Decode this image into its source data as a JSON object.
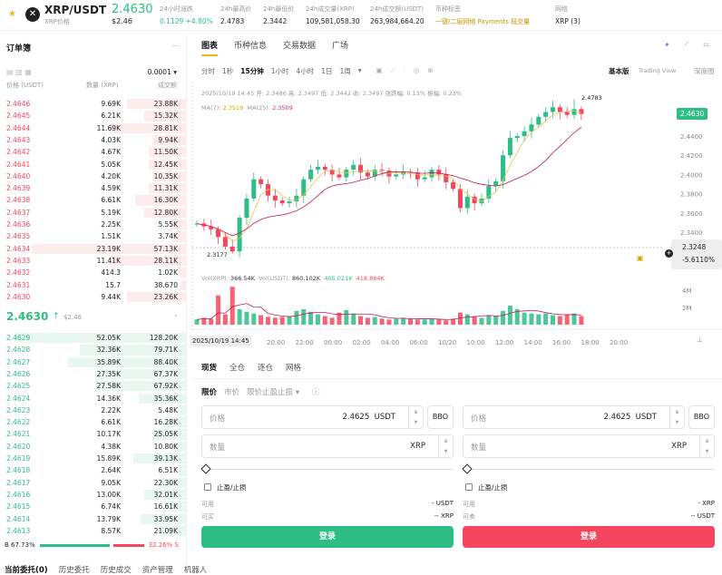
{
  "header": {
    "symbol": "XRP/USDT",
    "price": "2.4630",
    "sub_label": "XRP价格",
    "usd": "$2.46",
    "stats": [
      {
        "label": "24小时涨跌",
        "value": "0.1129 +4.80%"
      },
      {
        "label": "24h最高价",
        "value": "2.4783"
      },
      {
        "label": "24h最低价",
        "value": "2.3442"
      },
      {
        "label": "24h成交量(XRP)",
        "value": "109,581,058.30"
      },
      {
        "label": "24h成交额(USDT)",
        "value": "263,984,664.20"
      }
    ],
    "tags_label": "币种标签",
    "tags": "一键/二层网络  Payments  既交量",
    "network_label": "网络",
    "network": "XRP (3)"
  },
  "orderbook": {
    "title": "订单簿",
    "more": "...",
    "precision": "0.0001",
    "cols": [
      "价格 (USDT)",
      "数量 (XRP)",
      "成交额"
    ],
    "asks": [
      [
        "2.4646",
        "9.69K",
        "23.88K"
      ],
      [
        "2.4645",
        "6.21K",
        "15.32K"
      ],
      [
        "2.4644",
        "11.69K",
        "28.81K"
      ],
      [
        "2.4643",
        "4.03K",
        "9.94K"
      ],
      [
        "2.4642",
        "4.67K",
        "11.50K"
      ],
      [
        "2.4641",
        "5.05K",
        "12.45K"
      ],
      [
        "2.4640",
        "4.20K",
        "10.35K"
      ],
      [
        "2.4639",
        "4.59K",
        "11.31K"
      ],
      [
        "2.4638",
        "6.61K",
        "16.30K"
      ],
      [
        "2.4637",
        "5.19K",
        "12.80K"
      ],
      [
        "2.4636",
        "2.25K",
        "5.55K"
      ],
      [
        "2.4635",
        "1.51K",
        "3.74K"
      ],
      [
        "2.4634",
        "23.19K",
        "57.13K"
      ],
      [
        "2.4633",
        "11.41K",
        "28.11K"
      ],
      [
        "2.4632",
        "414.3",
        "1.02K"
      ],
      [
        "2.4631",
        "15.7",
        "38.670"
      ],
      [
        "2.4630",
        "9.44K",
        "23.26K"
      ]
    ],
    "ask_depth": [
      0.35,
      0.25,
      0.45,
      0.2,
      0.22,
      0.22,
      0.2,
      0.22,
      0.3,
      0.25,
      0.1,
      0.08,
      0.9,
      0.45,
      0.05,
      0.03,
      0.35
    ],
    "last": "2.4630",
    "last_arrow": "↑",
    "last_usd": "$2.46",
    "chev": "›",
    "bids": [
      [
        "2.4629",
        "52.05K",
        "128.20K"
      ],
      [
        "2.4628",
        "32.36K",
        "79.71K"
      ],
      [
        "2.4627",
        "35.89K",
        "88.40K"
      ],
      [
        "2.4626",
        "27.35K",
        "67.37K"
      ],
      [
        "2.4625",
        "27.58K",
        "67.92K"
      ],
      [
        "2.4624",
        "14.36K",
        "35.36K"
      ],
      [
        "2.4623",
        "2.22K",
        "5.48K"
      ],
      [
        "2.4622",
        "6.61K",
        "16.28K"
      ],
      [
        "2.4621",
        "10.17K",
        "25.05K"
      ],
      [
        "2.4620",
        "4.38K",
        "10.80K"
      ],
      [
        "2.4619",
        "15.89K",
        "39.13K"
      ],
      [
        "2.4618",
        "2.64K",
        "6.51K"
      ],
      [
        "2.4617",
        "9.05K",
        "22.30K"
      ],
      [
        "2.4616",
        "13.00K",
        "32.01K"
      ],
      [
        "2.4615",
        "6.74K",
        "16.61K"
      ],
      [
        "2.4614",
        "13.79K",
        "33.95K"
      ],
      [
        "2.4613",
        "8.57K",
        "21.09K"
      ]
    ],
    "bid_depth": [
      1,
      0.62,
      0.69,
      0.53,
      0.53,
      0.28,
      0.04,
      0.13,
      0.2,
      0.08,
      0.31,
      0.05,
      0.17,
      0.25,
      0.13,
      0.27,
      0.16
    ],
    "buy_ratio": "B 67.73%",
    "sell_ratio": "32.26% S",
    "buy_pct": 67.73
  },
  "chart_tabs": [
    "图表",
    "币种信息",
    "交易数据",
    "广场"
  ],
  "intervals": [
    "分时",
    "1秒",
    "15分钟",
    "1小时",
    "4小时",
    "1日",
    "1周",
    "▾"
  ],
  "views": [
    "基本版",
    "Trading View",
    "深度图"
  ],
  "chart_data": {
    "type": "candlestick",
    "info": "2025/10/19 14:45  开: 2.3486  高: 2.3497  低: 2.3442  收: 2.3497  涨跌幅: 0.13%  振幅: 0.23%",
    "ma_label": "MA(7): ",
    "ma7": "2.3519",
    "ma25_label": "MA(25): ",
    "ma25": "2.3509",
    "vol_label": "Vol(XRP): ",
    "vol_xrp": "366.54K",
    "vol_usdt_label": "Vol(USDT): ",
    "vol_usdt": "860.102K",
    "vol_ma1": "405.021K",
    "vol_ma2": "418.864K",
    "high_mark": "2.4783",
    "low_mark": "2.3177",
    "current_price": "2.4630",
    "hover_price": "2.3248",
    "hover_pct": "-5.6110%",
    "price_ticks": [
      "2.4400",
      "2.4200",
      "2.4000",
      "2.3800",
      "2.3600",
      "2.3400"
    ],
    "price_tick_values": [
      2.44,
      2.42,
      2.4,
      2.38,
      2.36,
      2.34
    ],
    "vol_ticks": [
      "4M",
      "2M"
    ],
    "vol_tick_values": [
      4,
      2
    ],
    "x_ticks": [
      "2025/10/19 14:45",
      "20:00",
      "22:00",
      "00:00",
      "02:00",
      "04:00",
      "06:00",
      "10/20",
      "10:00",
      "12:00",
      "14:00",
      "16:00",
      "18:00",
      "20:00"
    ],
    "closes": [
      2.349,
      2.346,
      2.343,
      2.335,
      2.325,
      2.32,
      2.355,
      2.375,
      2.395,
      2.39,
      2.378,
      2.373,
      2.37,
      2.372,
      2.378,
      2.395,
      2.405,
      2.408,
      2.405,
      2.4,
      2.397,
      2.405,
      2.41,
      2.402,
      2.398,
      2.405,
      2.404,
      2.398,
      2.4,
      2.403,
      2.402,
      2.395,
      2.397,
      2.405,
      2.4,
      2.392,
      2.385,
      2.365,
      2.377,
      2.37,
      2.375,
      2.388,
      2.393,
      2.42,
      2.438,
      2.44,
      2.445,
      2.452,
      2.46,
      2.465,
      2.47,
      2.465,
      2.462,
      2.468,
      2.463
    ],
    "volumes_m": [
      0.6,
      0.8,
      0.7,
      3.4,
      1.2,
      4.4,
      1.8,
      1.5,
      1.3,
      1.1,
      0.9,
      0.8,
      0.9,
      1.0,
      1.6,
      1.8,
      1.5,
      1.2,
      1.0,
      0.8,
      1.4,
      1.7,
      1.3,
      1.0,
      0.8,
      0.9,
      0.7,
      0.6,
      0.7,
      0.8,
      0.7,
      0.6,
      0.6,
      0.7,
      0.6,
      0.5,
      0.7,
      1.4,
      1.2,
      0.9,
      0.8,
      1.1,
      1.0,
      1.6,
      2.2,
      1.8,
      1.4,
      1.3,
      1.2,
      1.3,
      1.1,
      1.0,
      1.2,
      1.3,
      1.0
    ],
    "up_color": "#2ebd85",
    "down_color": "#f6465d"
  },
  "order": {
    "tabs": [
      "现货",
      "全仓",
      "逐仓",
      "网格"
    ],
    "types": [
      "限价",
      "市价",
      "限价止盈止损 ▾"
    ],
    "info_icon": "ⓘ",
    "buy": {
      "price_label": "价格",
      "price": "2.4625",
      "price_unit": "USDT",
      "bbo": "BBO",
      "qty_label": "数量",
      "qty_unit": "XRP",
      "tpsl": "止盈/止损",
      "avail_label": "可用",
      "avail": "- USDT",
      "max_label": "可买",
      "max": "-- XRP",
      "button": "登录"
    },
    "sell": {
      "price_label": "价格",
      "price": "2.4625",
      "price_unit": "USDT",
      "bbo": "BBO",
      "qty_label": "数量",
      "qty_unit": "XRP",
      "tpsl": "止盈/止损",
      "avail_label": "可用",
      "avail": "- XRP",
      "max_label": "可卖",
      "max": "-- USDT",
      "button": "登录"
    }
  },
  "bottom_tabs": [
    "当前委托(0)",
    "历史委托",
    "历史成交",
    "资产管理",
    "机器人"
  ]
}
